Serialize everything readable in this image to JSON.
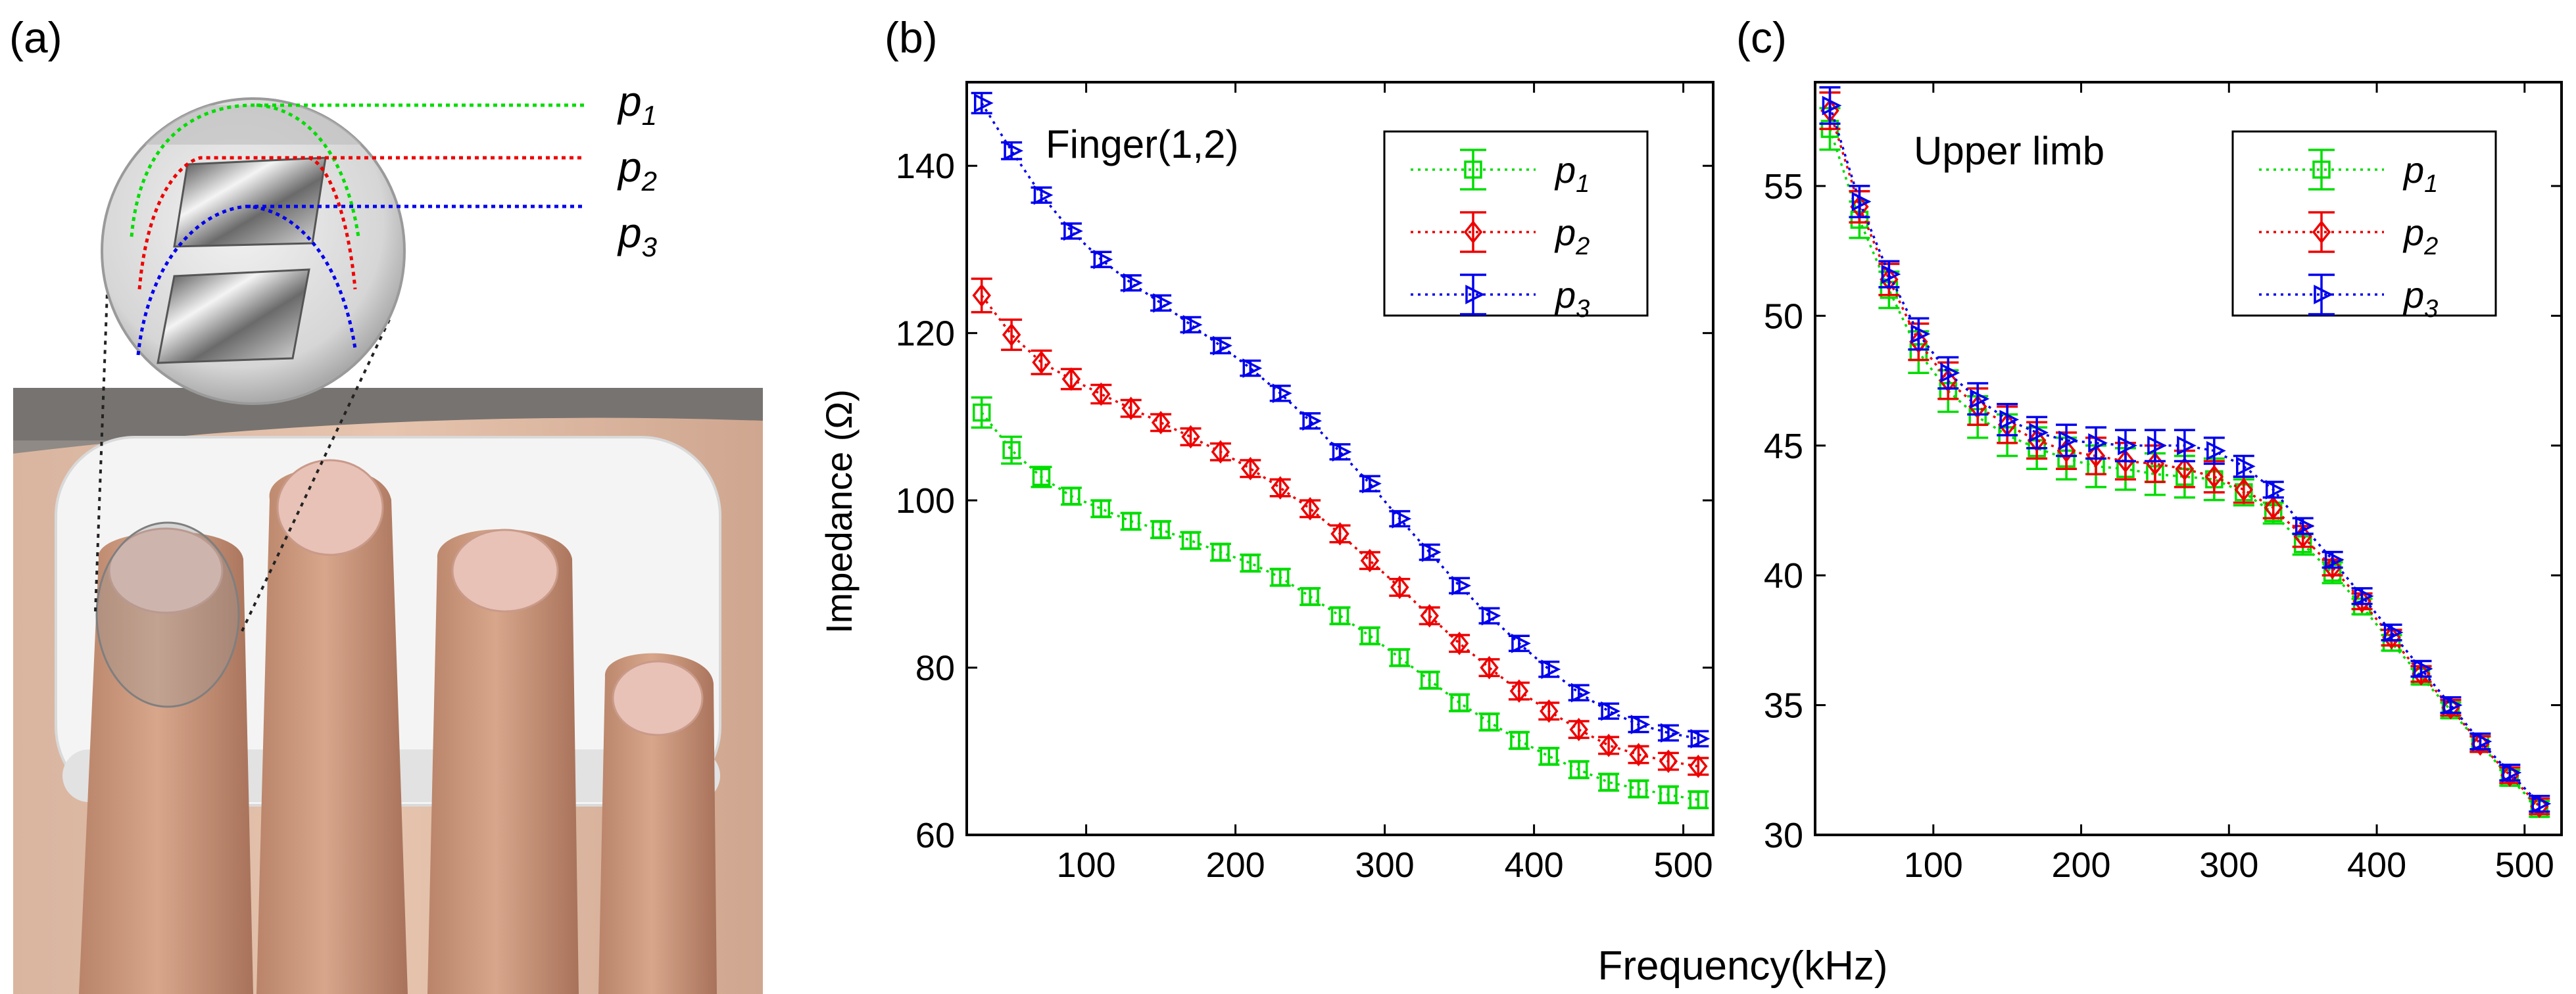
{
  "panel_labels": {
    "a": "(a)",
    "b": "(b)",
    "c": "(c)"
  },
  "photo": {
    "description_labels": [
      {
        "label": "p",
        "sub": "1",
        "color": "#00dd00"
      },
      {
        "label": "p",
        "sub": "2",
        "color": "#ee0000"
      },
      {
        "label": "p",
        "sub": "3",
        "color": "#0000ee"
      }
    ]
  },
  "shared_xlabel": "Frequency(kHz)",
  "chart_data": [
    {
      "type": "line",
      "panel": "(b)",
      "title": "Finger(1,2)",
      "ylabel": "Impedance (Ω)",
      "xlim": [
        20,
        520
      ],
      "ylim": [
        60,
        150
      ],
      "xticks": [
        100,
        200,
        300,
        400,
        500
      ],
      "yticks": [
        60,
        80,
        100,
        120,
        140
      ],
      "legend": "top-right",
      "x": [
        30,
        50,
        70,
        90,
        110,
        130,
        150,
        170,
        190,
        210,
        230,
        250,
        270,
        290,
        310,
        330,
        350,
        370,
        390,
        410,
        430,
        450,
        470,
        490,
        510
      ],
      "series": [
        {
          "name": "p",
          "sub": "1",
          "color": "#00dd00",
          "marker": "square",
          "values": [
            110.5,
            106,
            102.8,
            100.5,
            99,
            97.5,
            96.5,
            95.2,
            93.8,
            92.5,
            90.8,
            88.5,
            86.2,
            83.8,
            81.2,
            78.5,
            75.8,
            73.5,
            71.3,
            69.4,
            67.8,
            66.3,
            65.5,
            64.8,
            64.2
          ],
          "err": [
            1.8,
            1.6,
            1.2,
            1.0,
            1.0,
            1.0,
            1.0,
            1.0,
            1.0,
            1.0,
            1.0,
            1.0,
            1.0,
            1.0,
            1.0,
            1.0,
            1.0,
            1.0,
            1.0,
            1.0,
            1.0,
            1.0,
            1.0,
            1.0,
            1.0
          ]
        },
        {
          "name": "p",
          "sub": "2",
          "color": "#ee0000",
          "marker": "diamond",
          "values": [
            124.5,
            119.8,
            116.5,
            114.5,
            112.7,
            111,
            109.3,
            107.6,
            105.8,
            103.8,
            101.5,
            99,
            96,
            92.8,
            89.6,
            86.2,
            82.9,
            80,
            77.2,
            74.8,
            72.6,
            70.7,
            69.6,
            68.8,
            68.2
          ],
          "err": [
            2.0,
            1.8,
            1.4,
            1.2,
            1.1,
            1.0,
            1.0,
            1.0,
            1.0,
            1.0,
            1.0,
            1.0,
            1.0,
            1.0,
            1.0,
            1.0,
            1.0,
            1.0,
            1.0,
            1.0,
            1.0,
            1.0,
            1.0,
            1.0,
            1.0
          ]
        },
        {
          "name": "p",
          "sub": "3",
          "color": "#0000ee",
          "marker": "triangle-right",
          "values": [
            147.5,
            141.8,
            136.5,
            132.2,
            128.8,
            126,
            123.6,
            121,
            118.5,
            115.8,
            112.8,
            109.5,
            105.8,
            102,
            97.8,
            93.8,
            89.8,
            86.2,
            82.9,
            79.8,
            77,
            74.8,
            73.2,
            72.2,
            71.5
          ],
          "err": [
            1.2,
            1.0,
            0.9,
            0.9,
            0.9,
            0.9,
            0.9,
            0.9,
            0.9,
            0.9,
            0.9,
            0.9,
            0.9,
            0.9,
            0.9,
            0.9,
            0.9,
            0.9,
            0.9,
            0.9,
            0.9,
            0.9,
            0.9,
            0.9,
            0.9
          ]
        }
      ]
    },
    {
      "type": "line",
      "panel": "(c)",
      "title": "Upper limb",
      "ylabel": "",
      "xlim": [
        20,
        525
      ],
      "ylim": [
        30,
        59
      ],
      "xticks": [
        100,
        200,
        300,
        400,
        500
      ],
      "yticks": [
        30,
        35,
        40,
        45,
        50,
        55
      ],
      "legend": "top-right",
      "x": [
        30,
        50,
        70,
        90,
        110,
        130,
        150,
        170,
        190,
        210,
        230,
        250,
        270,
        290,
        310,
        330,
        350,
        370,
        390,
        410,
        430,
        450,
        470,
        490,
        510
      ],
      "series": [
        {
          "name": "p",
          "sub": "1",
          "color": "#00dd00",
          "marker": "square",
          "values": [
            57.2,
            53.7,
            51,
            48.6,
            47.1,
            46.1,
            45.4,
            44.9,
            44.5,
            44.2,
            44.1,
            43.9,
            43.8,
            43.7,
            43.2,
            42.4,
            41.2,
            40.1,
            38.8,
            37.4,
            36.1,
            34.8,
            33.5,
            32.2,
            31
          ],
          "err": [
            0.8,
            0.7,
            0.7,
            0.8,
            0.8,
            0.8,
            0.8,
            0.8,
            0.8,
            0.8,
            0.8,
            0.8,
            0.8,
            0.8,
            0.5,
            0.4,
            0.4,
            0.4,
            0.3,
            0.3,
            0.3,
            0.3,
            0.3,
            0.3,
            0.3
          ]
        },
        {
          "name": "p",
          "sub": "2",
          "color": "#ee0000",
          "marker": "diamond",
          "values": [
            57.9,
            54.2,
            51.4,
            49,
            47.5,
            46.5,
            45.8,
            45.2,
            44.8,
            44.6,
            44.4,
            44.3,
            44.1,
            43.8,
            43.3,
            42.6,
            41.5,
            40.3,
            39,
            37.6,
            36.2,
            34.9,
            33.5,
            32.3,
            31.1
          ],
          "err": [
            0.7,
            0.6,
            0.6,
            0.7,
            0.7,
            0.7,
            0.7,
            0.7,
            0.7,
            0.7,
            0.7,
            0.7,
            0.7,
            0.6,
            0.5,
            0.4,
            0.4,
            0.3,
            0.3,
            0.3,
            0.3,
            0.3,
            0.3,
            0.3,
            0.3
          ]
        },
        {
          "name": "p",
          "sub": "3",
          "color": "#0000ee",
          "marker": "triangle-right",
          "values": [
            58.1,
            54.4,
            51.6,
            49.3,
            47.8,
            46.8,
            46,
            45.5,
            45.2,
            45.1,
            45,
            45,
            45,
            44.8,
            44.2,
            43.3,
            41.9,
            40.6,
            39.2,
            37.8,
            36.4,
            35,
            33.6,
            32.4,
            31.2
          ],
          "err": [
            0.7,
            0.6,
            0.5,
            0.6,
            0.6,
            0.6,
            0.6,
            0.6,
            0.6,
            0.6,
            0.6,
            0.6,
            0.6,
            0.5,
            0.4,
            0.3,
            0.3,
            0.3,
            0.3,
            0.3,
            0.3,
            0.3,
            0.3,
            0.3,
            0.3
          ]
        }
      ]
    }
  ]
}
